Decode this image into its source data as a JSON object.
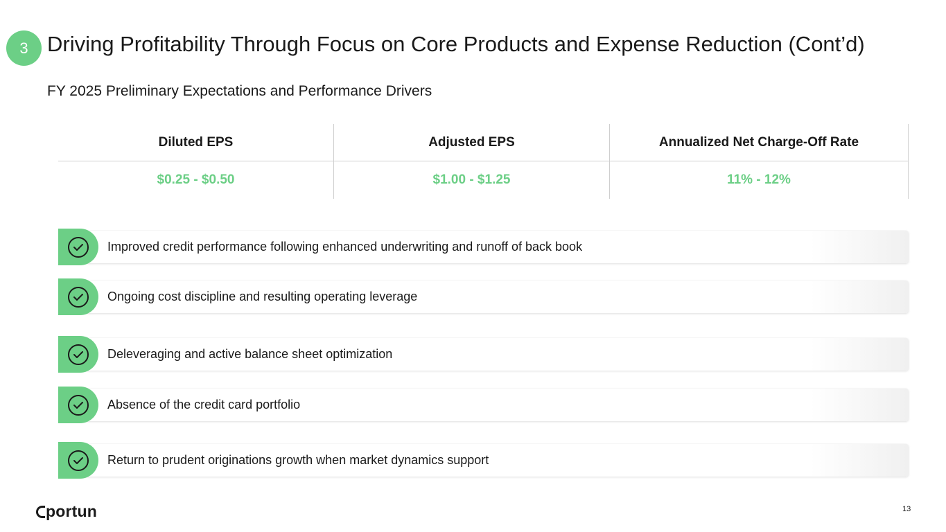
{
  "section": {
    "number": "3"
  },
  "title": "Driving Profitability Through Focus on Core Products and Expense Reduction (Cont’d)",
  "subtitle": "FY 2025 Preliminary Expectations and Performance Drivers",
  "metrics": [
    {
      "label": "Diluted EPS",
      "value": "$0.25 - $0.50"
    },
    {
      "label": "Adjusted EPS",
      "value": "$1.00 - $1.25"
    },
    {
      "label": "Annualized Net Charge-Off Rate",
      "value": "11% - 12%"
    }
  ],
  "drivers": [
    {
      "text": "Improved credit performance following enhanced underwriting and runoff of back book",
      "icon": "check-circle-icon"
    },
    {
      "text": "Ongoing cost discipline and resulting operating leverage",
      "icon": "check-circle-icon"
    },
    {
      "text": "Deleveraging and active balance sheet optimization",
      "icon": "check-circle-icon"
    },
    {
      "text": "Absence of the credit card portfolio",
      "icon": "check-circle-icon"
    },
    {
      "text": "Return to prudent originations growth when market dynamics support",
      "icon": "check-circle-icon"
    }
  ],
  "footer": {
    "logo": "Oportun",
    "logo_text": "portun",
    "page_number": "13"
  },
  "colors": {
    "accent": "#6ccf86",
    "text": "#1a1a1a",
    "divider": "#cfcfcf"
  }
}
